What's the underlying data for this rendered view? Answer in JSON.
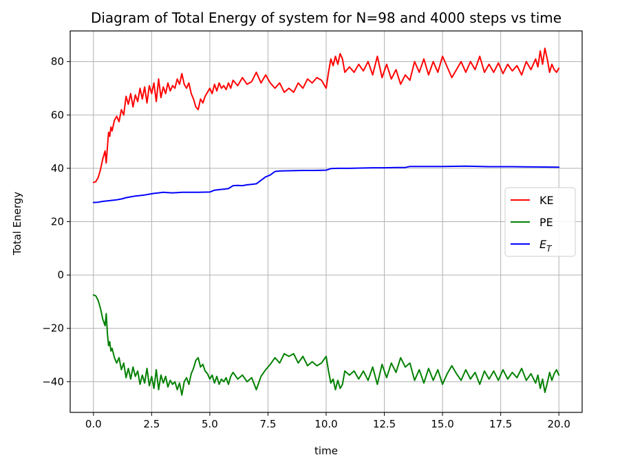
{
  "chart_data": {
    "type": "line",
    "title": "Diagram of Total Energy of system for N=98 and 4000 steps vs time",
    "xlabel": "time",
    "ylabel": "Total Energy",
    "xlim": [
      -1.0,
      21.0
    ],
    "ylim": [
      -51.5,
      91.5
    ],
    "xticks": [
      0.0,
      2.5,
      5.0,
      7.5,
      10.0,
      12.5,
      15.0,
      17.5,
      20.0
    ],
    "xtick_labels": [
      "0.0",
      "2.5",
      "5.0",
      "7.5",
      "10.0",
      "12.5",
      "15.0",
      "17.5",
      "20.0"
    ],
    "yticks": [
      -40,
      -20,
      0,
      20,
      40,
      60,
      80
    ],
    "ytick_labels": [
      "−40",
      "−20",
      "0",
      "20",
      "40",
      "60",
      "80"
    ],
    "grid": true,
    "legend_position": "center-right",
    "series": [
      {
        "name": "KE",
        "color": "#ff0000",
        "x": [
          0.0,
          0.1,
          0.2,
          0.3,
          0.4,
          0.5,
          0.55,
          0.6,
          0.65,
          0.7,
          0.75,
          0.8,
          0.9,
          1.0,
          1.1,
          1.2,
          1.3,
          1.4,
          1.5,
          1.6,
          1.7,
          1.8,
          1.9,
          2.0,
          2.1,
          2.2,
          2.3,
          2.4,
          2.5,
          2.6,
          2.7,
          2.8,
          2.9,
          3.0,
          3.1,
          3.2,
          3.3,
          3.4,
          3.5,
          3.6,
          3.7,
          3.8,
          3.9,
          4.0,
          4.1,
          4.2,
          4.3,
          4.4,
          4.5,
          4.6,
          4.7,
          4.8,
          4.9,
          5.0,
          5.1,
          5.2,
          5.3,
          5.4,
          5.5,
          5.6,
          5.7,
          5.8,
          5.9,
          6.0,
          6.2,
          6.4,
          6.6,
          6.8,
          7.0,
          7.2,
          7.4,
          7.6,
          7.8,
          8.0,
          8.2,
          8.4,
          8.6,
          8.8,
          9.0,
          9.2,
          9.4,
          9.6,
          9.8,
          10.0,
          10.1,
          10.2,
          10.3,
          10.4,
          10.5,
          10.6,
          10.7,
          10.8,
          11.0,
          11.2,
          11.4,
          11.6,
          11.8,
          12.0,
          12.2,
          12.4,
          12.6,
          12.8,
          13.0,
          13.2,
          13.4,
          13.6,
          13.8,
          14.0,
          14.2,
          14.4,
          14.6,
          14.8,
          15.0,
          15.2,
          15.4,
          15.6,
          15.8,
          16.0,
          16.2,
          16.4,
          16.6,
          16.8,
          17.0,
          17.2,
          17.4,
          17.6,
          17.8,
          18.0,
          18.2,
          18.4,
          18.6,
          18.8,
          19.0,
          19.1,
          19.2,
          19.3,
          19.4,
          19.5,
          19.6,
          19.7,
          19.8,
          19.9,
          20.0
        ],
        "y": [
          34.7,
          35.0,
          36.5,
          39.5,
          43.5,
          46.5,
          42.0,
          48.0,
          53.5,
          52.0,
          55.5,
          54.0,
          58.0,
          59.5,
          57.5,
          62.0,
          60.0,
          67.0,
          64.0,
          68.0,
          63.0,
          67.5,
          65.0,
          70.0,
          66.0,
          70.5,
          64.5,
          71.0,
          68.0,
          72.0,
          65.0,
          73.5,
          66.5,
          70.5,
          68.0,
          72.0,
          69.0,
          71.0,
          70.0,
          73.5,
          71.5,
          75.5,
          71.5,
          70.0,
          72.0,
          68.0,
          66.0,
          63.0,
          62.0,
          66.0,
          64.5,
          67.0,
          68.5,
          70.0,
          68.0,
          71.5,
          69.0,
          72.0,
          70.0,
          71.0,
          69.5,
          72.0,
          70.0,
          73.0,
          71.0,
          74.0,
          71.5,
          72.5,
          76.0,
          72.0,
          75.0,
          72.0,
          70.0,
          72.0,
          68.5,
          70.0,
          68.5,
          72.0,
          70.0,
          73.5,
          72.0,
          74.0,
          73.0,
          70.0,
          76.0,
          81.0,
          78.5,
          82.0,
          79.0,
          83.0,
          81.0,
          76.0,
          78.0,
          76.0,
          79.0,
          76.5,
          80.0,
          75.0,
          82.0,
          74.0,
          79.0,
          73.5,
          77.0,
          71.5,
          75.0,
          73.0,
          80.0,
          76.0,
          81.0,
          75.0,
          80.0,
          76.0,
          82.0,
          78.0,
          74.0,
          77.0,
          80.0,
          76.0,
          80.0,
          77.0,
          82.0,
          76.0,
          79.0,
          76.0,
          79.5,
          75.5,
          79.0,
          76.5,
          78.5,
          75.0,
          80.0,
          77.0,
          81.0,
          78.0,
          84.0,
          79.0,
          85.0,
          81.0,
          76.0,
          79.0,
          77.0,
          76.0,
          77.5
        ]
      },
      {
        "name": "PE",
        "color": "#008000",
        "x": [
          0.0,
          0.1,
          0.2,
          0.3,
          0.4,
          0.5,
          0.55,
          0.6,
          0.65,
          0.7,
          0.75,
          0.8,
          0.9,
          1.0,
          1.1,
          1.2,
          1.3,
          1.4,
          1.5,
          1.6,
          1.7,
          1.8,
          1.9,
          2.0,
          2.1,
          2.2,
          2.3,
          2.4,
          2.5,
          2.6,
          2.7,
          2.8,
          2.9,
          3.0,
          3.1,
          3.2,
          3.3,
          3.4,
          3.5,
          3.6,
          3.7,
          3.8,
          3.9,
          4.0,
          4.1,
          4.2,
          4.3,
          4.4,
          4.5,
          4.6,
          4.7,
          4.8,
          4.9,
          5.0,
          5.1,
          5.2,
          5.3,
          5.4,
          5.5,
          5.6,
          5.7,
          5.8,
          5.9,
          6.0,
          6.2,
          6.4,
          6.6,
          6.8,
          7.0,
          7.2,
          7.4,
          7.6,
          7.8,
          8.0,
          8.2,
          8.4,
          8.6,
          8.8,
          9.0,
          9.2,
          9.4,
          9.6,
          9.8,
          10.0,
          10.1,
          10.2,
          10.3,
          10.4,
          10.5,
          10.6,
          10.7,
          10.8,
          11.0,
          11.2,
          11.4,
          11.6,
          11.8,
          12.0,
          12.2,
          12.4,
          12.6,
          12.8,
          13.0,
          13.2,
          13.4,
          13.6,
          13.8,
          14.0,
          14.2,
          14.4,
          14.6,
          14.8,
          15.0,
          15.2,
          15.4,
          15.6,
          15.8,
          16.0,
          16.2,
          16.4,
          16.6,
          16.8,
          17.0,
          17.2,
          17.4,
          17.6,
          17.8,
          18.0,
          18.2,
          18.4,
          18.6,
          18.8,
          19.0,
          19.1,
          19.2,
          19.3,
          19.4,
          19.5,
          19.6,
          19.7,
          19.8,
          19.9,
          20.0
        ],
        "y": [
          -7.5,
          -7.8,
          -9.5,
          -12.5,
          -16.5,
          -19.0,
          -14.5,
          -22.0,
          -26.5,
          -25.0,
          -28.5,
          -27.5,
          -31.0,
          -33.0,
          -31.0,
          -35.5,
          -33.0,
          -38.5,
          -35.0,
          -39.0,
          -34.5,
          -38.0,
          -36.0,
          -41.0,
          -37.5,
          -40.5,
          -35.0,
          -41.5,
          -38.0,
          -42.5,
          -35.5,
          -43.0,
          -37.5,
          -40.5,
          -38.0,
          -42.0,
          -39.5,
          -41.0,
          -40.0,
          -43.0,
          -40.5,
          -45.0,
          -40.0,
          -38.5,
          -41.0,
          -37.0,
          -35.0,
          -32.0,
          -31.0,
          -34.5,
          -33.5,
          -36.0,
          -37.0,
          -39.0,
          -37.5,
          -40.5,
          -38.0,
          -41.0,
          -39.0,
          -40.0,
          -38.5,
          -41.0,
          -38.0,
          -36.5,
          -39.0,
          -37.5,
          -40.0,
          -38.5,
          -43.0,
          -38.0,
          -35.5,
          -33.5,
          -31.0,
          -33.0,
          -29.5,
          -30.5,
          -29.5,
          -33.0,
          -30.5,
          -34.0,
          -32.5,
          -34.0,
          -33.0,
          -30.5,
          -36.0,
          -40.5,
          -39.0,
          -43.0,
          -39.5,
          -42.5,
          -41.0,
          -36.0,
          -37.5,
          -36.0,
          -39.0,
          -36.0,
          -39.5,
          -34.5,
          -41.0,
          -33.5,
          -38.5,
          -33.0,
          -36.5,
          -31.0,
          -34.5,
          -33.0,
          -39.5,
          -35.5,
          -40.5,
          -35.0,
          -39.5,
          -35.5,
          -41.0,
          -37.0,
          -34.0,
          -37.0,
          -39.5,
          -35.5,
          -39.0,
          -36.5,
          -41.0,
          -36.0,
          -39.0,
          -36.0,
          -39.5,
          -35.5,
          -39.0,
          -36.5,
          -38.5,
          -35.0,
          -39.5,
          -37.0,
          -40.5,
          -37.5,
          -42.5,
          -39.0,
          -44.0,
          -40.5,
          -36.5,
          -39.5,
          -37.0,
          -35.5,
          -37.5
        ]
      },
      {
        "name": "E_T",
        "color": "#0000ff",
        "x": [
          0.0,
          0.2,
          0.4,
          0.6,
          0.8,
          1.0,
          1.2,
          1.4,
          1.6,
          1.8,
          2.0,
          2.2,
          2.4,
          2.6,
          2.8,
          3.0,
          3.2,
          3.4,
          3.6,
          3.8,
          4.0,
          4.5,
          5.0,
          5.2,
          5.4,
          5.6,
          5.8,
          6.0,
          6.2,
          6.4,
          6.6,
          6.8,
          7.0,
          7.2,
          7.4,
          7.6,
          7.8,
          8.0,
          8.5,
          9.0,
          9.5,
          10.0,
          10.2,
          10.5,
          11.0,
          11.5,
          12.0,
          12.5,
          13.0,
          13.4,
          13.6,
          14.0,
          15.0,
          16.0,
          17.0,
          18.0,
          19.0,
          20.0
        ],
        "y": [
          27.2,
          27.3,
          27.6,
          27.8,
          28.0,
          28.2,
          28.5,
          29.0,
          29.3,
          29.6,
          29.8,
          30.0,
          30.3,
          30.6,
          30.8,
          31.0,
          30.9,
          30.8,
          30.9,
          31.0,
          31.0,
          31.0,
          31.1,
          31.8,
          32.0,
          32.2,
          32.4,
          33.5,
          33.6,
          33.5,
          33.8,
          34.0,
          34.2,
          35.5,
          36.8,
          37.5,
          38.8,
          39.0,
          39.1,
          39.2,
          39.2,
          39.3,
          39.9,
          40.0,
          40.0,
          40.1,
          40.2,
          40.2,
          40.3,
          40.3,
          40.7,
          40.7,
          40.7,
          40.8,
          40.6,
          40.6,
          40.5,
          40.4
        ]
      }
    ],
    "legend": [
      {
        "label": "KE",
        "color": "#ff0000"
      },
      {
        "label": "PE",
        "color": "#008000"
      },
      {
        "label": "E",
        "sub": "T",
        "color": "#0000ff"
      }
    ]
  }
}
